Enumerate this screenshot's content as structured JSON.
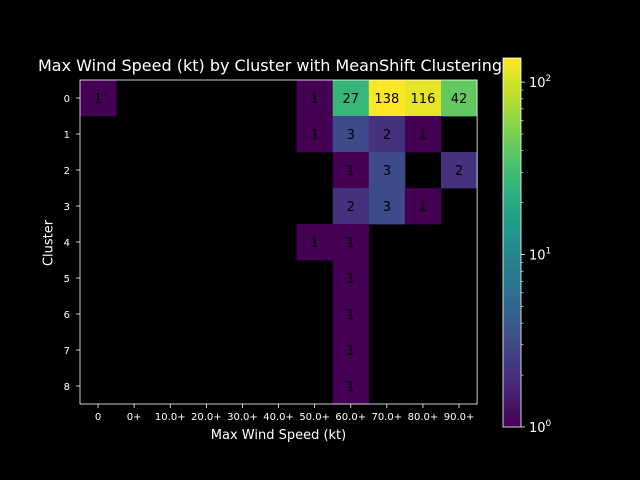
{
  "chart_data": {
    "type": "heatmap",
    "title": "Max Wind Speed (kt) by Cluster with MeanShift Clustering",
    "xlabel": "Max Wind Speed (kt)",
    "ylabel": "Cluster",
    "x_categories": [
      "0",
      "0+",
      "10.0+",
      "20.0+",
      "30.0+",
      "40.0+",
      "50.0+",
      "60.0+",
      "70.0+",
      "80.0+",
      "90.0+"
    ],
    "y_categories": [
      "0",
      "1",
      "2",
      "3",
      "4",
      "5",
      "6",
      "7",
      "8"
    ],
    "values": [
      [
        1,
        null,
        null,
        null,
        null,
        null,
        1,
        27,
        138,
        116,
        42
      ],
      [
        null,
        null,
        null,
        null,
        null,
        null,
        1,
        3,
        2,
        1,
        null
      ],
      [
        null,
        null,
        null,
        null,
        null,
        null,
        null,
        1,
        3,
        null,
        2
      ],
      [
        null,
        null,
        null,
        null,
        null,
        null,
        null,
        2,
        3,
        1,
        null
      ],
      [
        null,
        null,
        null,
        null,
        null,
        null,
        1,
        1,
        null,
        null,
        null
      ],
      [
        null,
        null,
        null,
        null,
        null,
        null,
        null,
        1,
        null,
        null,
        null
      ],
      [
        null,
        null,
        null,
        null,
        null,
        null,
        null,
        1,
        null,
        null,
        null
      ],
      [
        null,
        null,
        null,
        null,
        null,
        null,
        null,
        1,
        null,
        null,
        null
      ],
      [
        null,
        null,
        null,
        null,
        null,
        null,
        null,
        1,
        null,
        null,
        null
      ]
    ],
    "colorscale": "viridis",
    "color_scale_type": "log",
    "color_range": [
      1,
      138
    ],
    "colorbar_ticks": [
      {
        "value": 1,
        "base": "10",
        "exp": "0"
      },
      {
        "value": 10,
        "base": "10",
        "exp": "1"
      },
      {
        "value": 100,
        "base": "10",
        "exp": "2"
      }
    ],
    "background_color": "#000000",
    "grid": false
  }
}
